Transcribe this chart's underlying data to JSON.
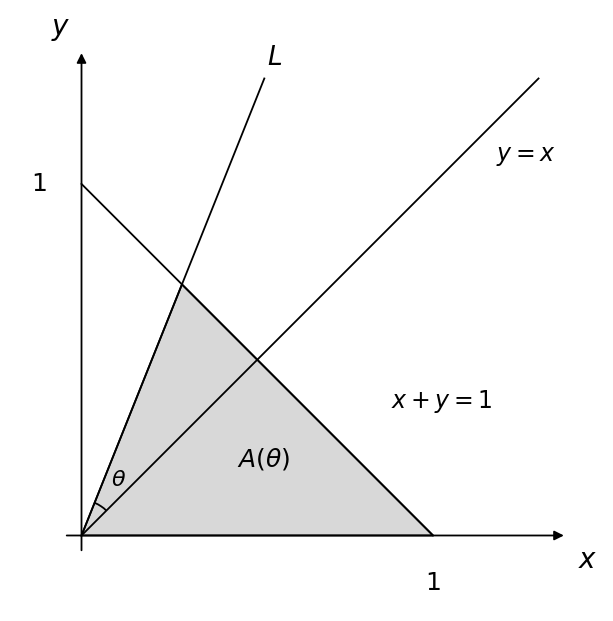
{
  "background_color": "#ffffff",
  "line_color": "#000000",
  "shade_color": "#d8d8d8",
  "shade_alpha": 1.0,
  "fig_width": 6.13,
  "fig_height": 6.21,
  "dpi": 100,
  "xlim": [
    -0.22,
    1.5
  ],
  "ylim": [
    -0.22,
    1.5
  ],
  "slope_L": 2.5,
  "font_size_labels": 17,
  "font_size_axis_labels": 20,
  "font_size_tick_labels": 18,
  "font_size_area": 18,
  "font_size_theta": 16,
  "line_width": 1.3
}
